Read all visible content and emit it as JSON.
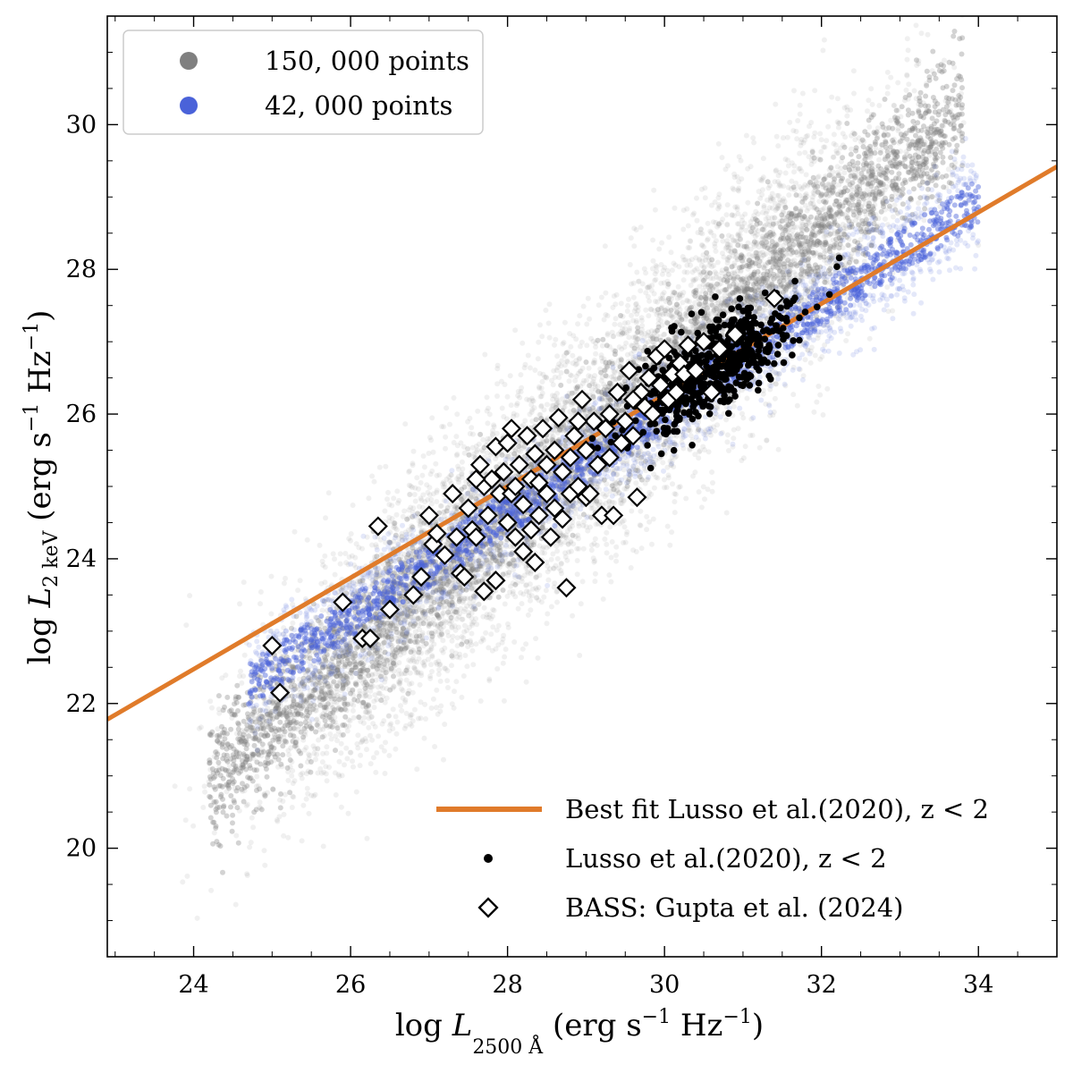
{
  "chart_data": {
    "type": "scatter",
    "xlabel": "log L_2500 Å (erg s⁻¹ Hz⁻¹)",
    "ylabel": "log L_2keV (erg s⁻¹ Hz⁻¹)",
    "xlabel_parts": {
      "base": "log ",
      "var": "L",
      "sub": "2500 Å",
      "units": " (erg s",
      "exp": "−1",
      "units2": " Hz",
      "exp2": "−1",
      "close": ")"
    },
    "ylabel_parts": {
      "base": "log ",
      "var": "L",
      "sub": "2 keV",
      "units": " (erg s",
      "exp": "−1",
      "units2": " Hz",
      "exp2": "−1",
      "close": ")"
    },
    "xlim": [
      22.9,
      35.0
    ],
    "ylim": [
      18.5,
      31.5
    ],
    "xticks": [
      24,
      26,
      28,
      30,
      32,
      34
    ],
    "yticks": [
      20,
      22,
      24,
      26,
      28,
      30
    ],
    "xtick_labels": [
      "24",
      "26",
      "28",
      "30",
      "32",
      "34"
    ],
    "ytick_labels": [
      "20",
      "22",
      "24",
      "26",
      "28",
      "30"
    ],
    "grid": false,
    "series": [
      {
        "name": "150, 000 points",
        "kind": "cloud",
        "color": "#808080",
        "count": 150000,
        "x_range": [
          23.3,
          34.5
        ],
        "relation": {
          "slope": 0.97,
          "intercept_at_x29": 25.6
        },
        "scatter_sigma": 0.85
      },
      {
        "name": "42, 000 points",
        "kind": "cloud",
        "color": "#4a62d9",
        "count": 42000,
        "x_range": [
          24.7,
          34.0
        ],
        "relation": {
          "slope": 0.72,
          "intercept_at_x29": 25.35
        },
        "scatter_sigma": 0.35
      },
      {
        "name": "Best fit Lusso et al.(2020), z < 2",
        "kind": "line",
        "color": "#e07b2a",
        "x": [
          22.9,
          35.0
        ],
        "y": [
          21.78,
          29.42
        ]
      },
      {
        "name": "Lusso et al.(2020), z < 2",
        "kind": "points",
        "color": "#000000",
        "count": 550,
        "center": [
          30.6,
          26.6
        ],
        "spread": [
          0.55,
          0.45
        ]
      },
      {
        "name": "BASS: Gupta et al. (2024)",
        "kind": "diamonds",
        "color": "#ffffff",
        "edge": "#000000",
        "points": [
          [
            25.0,
            22.8
          ],
          [
            25.1,
            22.15
          ],
          [
            25.9,
            23.4
          ],
          [
            26.15,
            22.9
          ],
          [
            26.25,
            22.9
          ],
          [
            26.35,
            24.45
          ],
          [
            26.5,
            23.3
          ],
          [
            26.8,
            23.5
          ],
          [
            26.9,
            23.75
          ],
          [
            27.0,
            24.6
          ],
          [
            27.05,
            24.2
          ],
          [
            27.1,
            24.35
          ],
          [
            27.2,
            24.05
          ],
          [
            27.3,
            24.9
          ],
          [
            27.35,
            24.3
          ],
          [
            27.4,
            23.8
          ],
          [
            27.45,
            23.75
          ],
          [
            27.5,
            24.7
          ],
          [
            27.55,
            24.4
          ],
          [
            27.6,
            24.3
          ],
          [
            27.65,
            25.3
          ],
          [
            27.7,
            23.55
          ],
          [
            27.7,
            25.0
          ],
          [
            27.75,
            24.6
          ],
          [
            27.8,
            25.1
          ],
          [
            27.85,
            23.7
          ],
          [
            27.85,
            25.55
          ],
          [
            27.9,
            24.9
          ],
          [
            27.95,
            25.2
          ],
          [
            28.0,
            24.5
          ],
          [
            28.0,
            25.6
          ],
          [
            28.05,
            24.9
          ],
          [
            28.1,
            24.3
          ],
          [
            28.1,
            25.0
          ],
          [
            28.15,
            25.3
          ],
          [
            28.2,
            24.1
          ],
          [
            28.2,
            24.75
          ],
          [
            28.25,
            25.7
          ],
          [
            28.3,
            24.4
          ],
          [
            28.3,
            25.1
          ],
          [
            28.35,
            23.95
          ],
          [
            28.35,
            25.45
          ],
          [
            28.4,
            24.6
          ],
          [
            28.4,
            25.05
          ],
          [
            28.45,
            25.8
          ],
          [
            28.5,
            24.9
          ],
          [
            28.5,
            25.3
          ],
          [
            28.55,
            24.3
          ],
          [
            28.6,
            25.5
          ],
          [
            28.6,
            24.7
          ],
          [
            28.65,
            25.95
          ],
          [
            28.7,
            24.55
          ],
          [
            28.7,
            25.2
          ],
          [
            28.75,
            23.6
          ],
          [
            28.8,
            25.4
          ],
          [
            28.8,
            24.9
          ],
          [
            28.85,
            25.7
          ],
          [
            28.9,
            25.0
          ],
          [
            28.95,
            26.2
          ],
          [
            29.0,
            24.85
          ],
          [
            29.0,
            25.5
          ],
          [
            29.05,
            24.9
          ],
          [
            29.1,
            25.9
          ],
          [
            29.15,
            25.3
          ],
          [
            29.2,
            24.6
          ],
          [
            29.25,
            25.8
          ],
          [
            29.3,
            26.0
          ],
          [
            29.3,
            25.4
          ],
          [
            29.35,
            24.6
          ],
          [
            29.4,
            26.3
          ],
          [
            29.45,
            25.6
          ],
          [
            29.5,
            25.9
          ],
          [
            29.55,
            26.6
          ],
          [
            29.6,
            25.7
          ],
          [
            29.65,
            24.85
          ],
          [
            29.7,
            26.3
          ],
          [
            29.75,
            26.1
          ],
          [
            29.8,
            26.5
          ],
          [
            29.85,
            26.0
          ],
          [
            29.9,
            26.8
          ],
          [
            29.95,
            26.4
          ],
          [
            30.0,
            26.9
          ],
          [
            30.05,
            26.2
          ],
          [
            30.1,
            26.55
          ],
          [
            30.15,
            26.3
          ],
          [
            30.2,
            26.7
          ],
          [
            30.25,
            26.55
          ],
          [
            30.3,
            26.95
          ],
          [
            30.4,
            26.6
          ],
          [
            30.5,
            27.0
          ],
          [
            30.6,
            26.3
          ],
          [
            30.7,
            26.9
          ],
          [
            30.9,
            27.1
          ],
          [
            31.4,
            27.6
          ],
          [
            29.6,
            26.2
          ],
          [
            28.05,
            25.8
          ],
          [
            27.6,
            25.1
          ],
          [
            28.9,
            25.9
          ]
        ]
      }
    ],
    "legend_top": [
      "150, 000 points",
      "42, 000 points"
    ],
    "legend_bottom": [
      "Best fit Lusso et al.(2020), z < 2",
      "Lusso et al.(2020), z < 2",
      "BASS: Gupta et al. (2024)"
    ],
    "legend_top_position": "top-left",
    "legend_bottom_position": "bottom-right"
  }
}
